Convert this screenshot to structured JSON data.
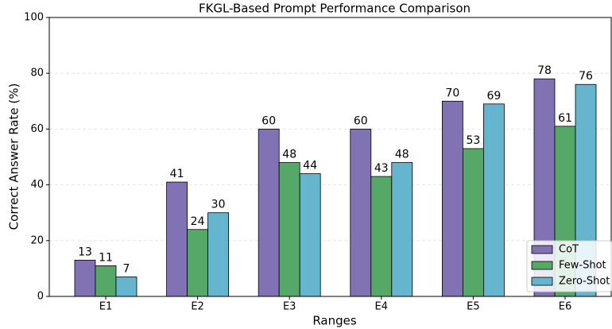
{
  "chart_data": {
    "type": "bar",
    "title": "FKGL-Based Prompt Performance Comparison",
    "xlabel": "Ranges",
    "ylabel": "Correct Answer Rate (%)",
    "categories": [
      "E1",
      "E2",
      "E3",
      "E4",
      "E5",
      "E6"
    ],
    "series": [
      {
        "name": "CoT",
        "color": "#8172b3",
        "values": [
          13,
          41,
          60,
          60,
          70,
          78
        ]
      },
      {
        "name": "Few-Shot",
        "color": "#55a868",
        "values": [
          11,
          24,
          48,
          43,
          53,
          61
        ]
      },
      {
        "name": "Zero-Shot",
        "color": "#64b5cd",
        "values": [
          7,
          30,
          44,
          48,
          69,
          76
        ]
      }
    ],
    "ylim": [
      0,
      100
    ],
    "yticks": [
      0,
      20,
      40,
      60,
      80,
      100
    ],
    "grid": true,
    "legend": "lower right"
  }
}
